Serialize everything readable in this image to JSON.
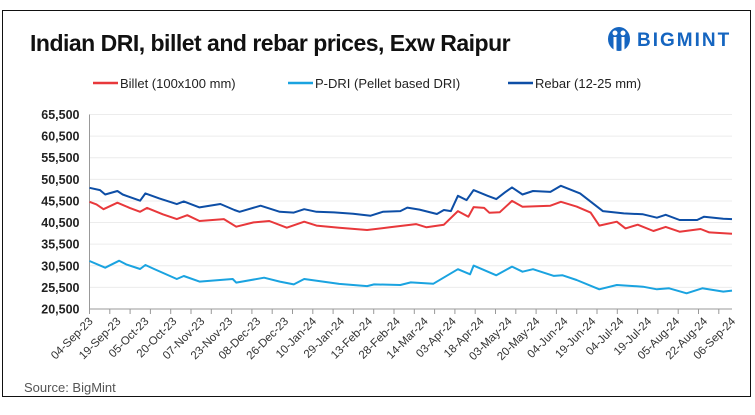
{
  "source": "Source: BigMint",
  "logo": {
    "text": "BIGMINT",
    "color": "#1565c0"
  },
  "chart_data": {
    "type": "line",
    "title": "Indian DRI, billet and rebar prices, Exw Raipur",
    "xlabel": "",
    "ylabel": "",
    "ylim": [
      20500,
      65500
    ],
    "yticks": [
      "65,500",
      "60,500",
      "55,500",
      "50,500",
      "45,500",
      "40,500",
      "35,500",
      "30,500",
      "25,500",
      "20,500"
    ],
    "x_unit": "days since 04-Sep-23",
    "xlim": [
      0,
      368
    ],
    "xticks": [
      "04-Sep-23",
      "19-Sep-23",
      "05-Oct-23",
      "20-Oct-23",
      "07-Nov-23",
      "23-Nov-23",
      "08-Dec-23",
      "26-Dec-23",
      "10-Jan-24",
      "29-Jan-24",
      "13-Feb-24",
      "28-Feb-24",
      "14-Mar-24",
      "03-Apr-24",
      "18-Apr-24",
      "03-May-24",
      "20-May-24",
      "04-Jun-24",
      "19-Jun-24",
      "04-Jul-24",
      "19-Jul-24",
      "05-Aug-24",
      "22-Aug-24",
      "06-Sep-24"
    ],
    "grid": true,
    "legend_position": "top",
    "series": [
      {
        "name": "Billet (100x100 mm)",
        "color": "#e8383b",
        "x": [
          0,
          4,
          8,
          16,
          23,
          29,
          33,
          42,
          50,
          56,
          63,
          77,
          84,
          94,
          103,
          113,
          123,
          130,
          143,
          159,
          172,
          187,
          193,
          203,
          211,
          217,
          220,
          226,
          229,
          235,
          242,
          248,
          264,
          270,
          279,
          287,
          292,
          302,
          307,
          314,
          323,
          330,
          338,
          350,
          355,
          368
        ],
        "y": [
          45300,
          44700,
          43600,
          45100,
          43900,
          43000,
          43900,
          42400,
          41300,
          42200,
          40850,
          41300,
          39540,
          40540,
          40850,
          39300,
          40700,
          39800,
          39300,
          38770,
          39400,
          40150,
          39400,
          40000,
          43150,
          41850,
          44080,
          43900,
          42770,
          42900,
          45500,
          44160,
          44400,
          45300,
          44200,
          42800,
          39800,
          40700,
          39150,
          40000,
          38540,
          39500,
          38390,
          39000,
          38230,
          37920
        ]
      },
      {
        "name": "P-DRI (Pellet based DRI)",
        "color": "#1aa3e0",
        "x": [
          0,
          9,
          17,
          21,
          29,
          32,
          37,
          50,
          54,
          63,
          82,
          84,
          100,
          109,
          117,
          123,
          143,
          159,
          163,
          178,
          184,
          197,
          211,
          218,
          220,
          233,
          242,
          248,
          254,
          266,
          271,
          279,
          292,
          302,
          317,
          325,
          332,
          342,
          351,
          363,
          368
        ],
        "y": [
          31600,
          30050,
          31680,
          30830,
          29750,
          30680,
          29750,
          27440,
          28140,
          26830,
          27440,
          26600,
          27750,
          26830,
          26200,
          27440,
          26300,
          25800,
          26200,
          26050,
          26650,
          26360,
          29700,
          28520,
          30530,
          28300,
          30300,
          29140,
          29700,
          28150,
          28300,
          27200,
          25050,
          26050,
          25670,
          25050,
          25300,
          24130,
          25280,
          24520,
          24750
        ]
      },
      {
        "name": "Rebar (12-25 mm)",
        "color": "#0d4ea6",
        "x": [
          0,
          6,
          9,
          16,
          19,
          29,
          32,
          40,
          50,
          54,
          63,
          75,
          83,
          86,
          98,
          109,
          117,
          123,
          130,
          140,
          151,
          161,
          168,
          178,
          182,
          189,
          199,
          203,
          207,
          211,
          216,
          220,
          228,
          233,
          238,
          242,
          248,
          254,
          264,
          270,
          281,
          294,
          306,
          317,
          325,
          330,
          338,
          348,
          352,
          363,
          368
        ],
        "y": [
          48550,
          48000,
          47000,
          47800,
          47000,
          45550,
          47240,
          46100,
          44780,
          45400,
          44000,
          44800,
          43400,
          43000,
          44400,
          43000,
          42800,
          43600,
          43000,
          42850,
          42550,
          42080,
          43000,
          43150,
          43950,
          43500,
          42470,
          43400,
          43150,
          46700,
          45700,
          48000,
          46700,
          45930,
          47500,
          48630,
          47000,
          47800,
          47600,
          49000,
          47240,
          43150,
          42620,
          42400,
          41620,
          42300,
          41080,
          41080,
          41850,
          41400,
          41310
        ]
      }
    ]
  }
}
